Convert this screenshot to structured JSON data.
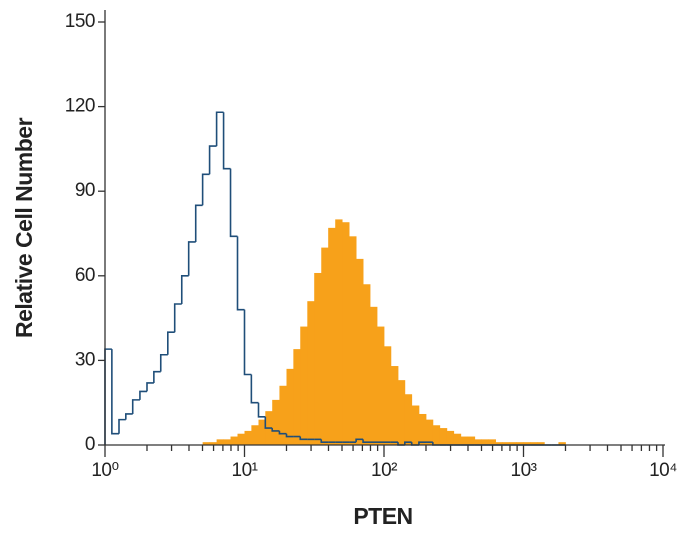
{
  "chart_data": {
    "type": "histogram",
    "x_label": "PTEN",
    "y_label": "Relative Cell Number",
    "xscale": "log",
    "xlim": [
      1,
      10000
    ],
    "ylim": [
      0,
      150
    ],
    "xticks": [
      {
        "value": 1,
        "label": "10⁰"
      },
      {
        "value": 10,
        "label": "10¹"
      },
      {
        "value": 100,
        "label": "10²"
      },
      {
        "value": 1000,
        "label": "10³"
      },
      {
        "value": 10000,
        "label": "10⁴"
      }
    ],
    "yticks": [
      0,
      30,
      60,
      90,
      120,
      150
    ],
    "bins": [
      1,
      1.12,
      1.26,
      1.41,
      1.58,
      1.78,
      2,
      2.24,
      2.51,
      2.82,
      3.16,
      3.55,
      3.98,
      4.47,
      5.01,
      5.62,
      6.31,
      7.08,
      7.94,
      8.91,
      10,
      11.2,
      12.6,
      14.1,
      15.8,
      17.8,
      20,
      22.4,
      25.1,
      28.2,
      31.6,
      35.5,
      39.8,
      44.7,
      50.1,
      56.2,
      63.1,
      70.8,
      79.4,
      89.1,
      100,
      112,
      126,
      141,
      158,
      178,
      200,
      224,
      251,
      282,
      316,
      355,
      398,
      447,
      501,
      562,
      631,
      708,
      794,
      891,
      1000,
      1120,
      1260,
      1410,
      1580,
      1780,
      2000
    ],
    "series": [
      {
        "color": "#f7a11a",
        "fill": true,
        "values": [
          0,
          0,
          0,
          0,
          0,
          0,
          0,
          0,
          0,
          0,
          0,
          0,
          0,
          0,
          1,
          1,
          2,
          2,
          3,
          4,
          5,
          7,
          9,
          12,
          16,
          21,
          27,
          34,
          42,
          51,
          61,
          70,
          77,
          80,
          79,
          74,
          66,
          57,
          49,
          42,
          35,
          28,
          23,
          18,
          14,
          11,
          9,
          7,
          6,
          5,
          4,
          3,
          3,
          2,
          2,
          2,
          1,
          1,
          1,
          1,
          1,
          1,
          1,
          0,
          0,
          1
        ]
      },
      {
        "color": "#1f4e79",
        "fill": false,
        "values": [
          34,
          4,
          9,
          11,
          16,
          19,
          22,
          26,
          32,
          40,
          50,
          60,
          72,
          85,
          96,
          106,
          118,
          98,
          74,
          48,
          25,
          15,
          10,
          6,
          5,
          4,
          3,
          3,
          2,
          2,
          2,
          1,
          1,
          1,
          1,
          1,
          2,
          1,
          1,
          1,
          1,
          1,
          0,
          1,
          0,
          1,
          1,
          0,
          0,
          0,
          0,
          0,
          0,
          0,
          0,
          0,
          0,
          0,
          0,
          0,
          0,
          0,
          0,
          0,
          0,
          0
        ]
      }
    ]
  }
}
